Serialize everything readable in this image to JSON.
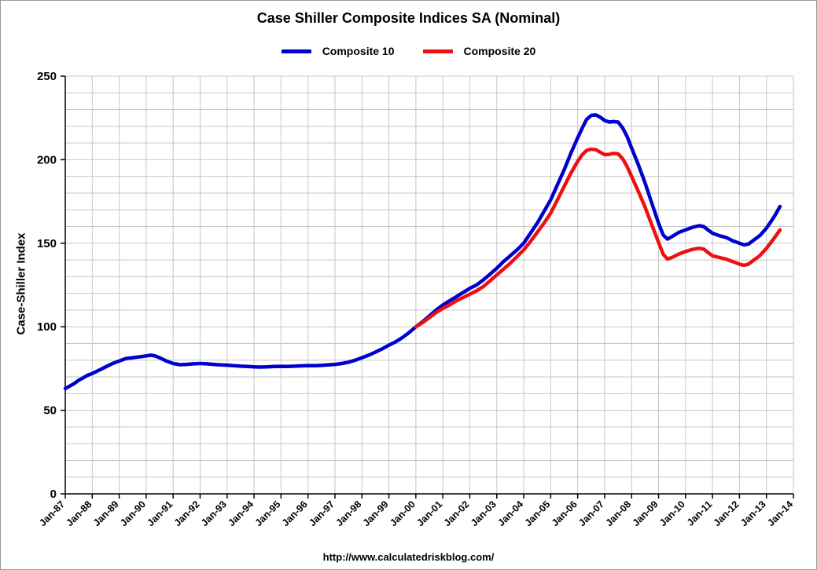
{
  "chart_data": {
    "type": "line",
    "title": "Case Shiller Composite Indices SA (Nominal)",
    "ylabel": "Case-Shiller Index",
    "xlabel": "",
    "source_url": "http://www.calculatedriskblog.com/",
    "x_range": [
      1987,
      2014
    ],
    "ylim": [
      0,
      250
    ],
    "y_ticks": [
      0,
      50,
      100,
      150,
      200,
      250
    ],
    "y_minor_grid_step": 10,
    "grid": true,
    "legend_position": "top-center",
    "grid_color": "#c6c6c6",
    "axis_color": "#000000",
    "x_tick_labels": [
      "Jan-87",
      "Jan-88",
      "Jan-89",
      "Jan-90",
      "Jan-91",
      "Jan-92",
      "Jan-93",
      "Jan-94",
      "Jan-95",
      "Jan-96",
      "Jan-97",
      "Jan-98",
      "Jan-99",
      "Jan-00",
      "Jan-01",
      "Jan-02",
      "Jan-03",
      "Jan-04",
      "Jan-05",
      "Jan-06",
      "Jan-07",
      "Jan-08",
      "Jan-09",
      "Jan-10",
      "Jan-11",
      "Jan-12",
      "Jan-13",
      "Jan-14"
    ],
    "series": [
      {
        "name": "Composite 10",
        "color": "#0000CC",
        "points": [
          [
            1987.0,
            63
          ],
          [
            1987.17,
            64.5
          ],
          [
            1987.33,
            66
          ],
          [
            1987.5,
            68
          ],
          [
            1987.67,
            69.5
          ],
          [
            1987.83,
            71
          ],
          [
            1988.0,
            72
          ],
          [
            1988.25,
            74
          ],
          [
            1988.5,
            76
          ],
          [
            1988.75,
            78
          ],
          [
            1989.0,
            79.5
          ],
          [
            1989.25,
            81
          ],
          [
            1989.5,
            81.5
          ],
          [
            1989.75,
            82
          ],
          [
            1990.0,
            82.5
          ],
          [
            1990.17,
            83
          ],
          [
            1990.33,
            82.5
          ],
          [
            1990.5,
            81.5
          ],
          [
            1990.75,
            79.5
          ],
          [
            1991.0,
            78
          ],
          [
            1991.25,
            77.3
          ],
          [
            1991.5,
            77.5
          ],
          [
            1991.75,
            77.8
          ],
          [
            1992.0,
            78
          ],
          [
            1992.25,
            77.8
          ],
          [
            1992.5,
            77.5
          ],
          [
            1992.75,
            77.2
          ],
          [
            1993.0,
            77
          ],
          [
            1993.25,
            76.7
          ],
          [
            1993.5,
            76.4
          ],
          [
            1993.75,
            76.2
          ],
          [
            1994.0,
            76
          ],
          [
            1994.25,
            75.9
          ],
          [
            1994.5,
            76
          ],
          [
            1994.75,
            76.2
          ],
          [
            1995.0,
            76.3
          ],
          [
            1995.25,
            76.2
          ],
          [
            1995.5,
            76.4
          ],
          [
            1995.75,
            76.6
          ],
          [
            1996.0,
            76.8
          ],
          [
            1996.25,
            76.7
          ],
          [
            1996.5,
            76.9
          ],
          [
            1996.75,
            77.2
          ],
          [
            1997.0,
            77.5
          ],
          [
            1997.25,
            78
          ],
          [
            1997.5,
            78.8
          ],
          [
            1997.75,
            80
          ],
          [
            1998.0,
            81.5
          ],
          [
            1998.25,
            83
          ],
          [
            1998.5,
            84.8
          ],
          [
            1998.75,
            86.8
          ],
          [
            1999.0,
            89
          ],
          [
            1999.25,
            91
          ],
          [
            1999.5,
            93.5
          ],
          [
            1999.75,
            96.5
          ],
          [
            2000.0,
            100
          ],
          [
            2000.25,
            103
          ],
          [
            2000.5,
            106.5
          ],
          [
            2000.75,
            110
          ],
          [
            2001.0,
            113
          ],
          [
            2001.25,
            115.5
          ],
          [
            2001.5,
            118
          ],
          [
            2001.75,
            120.5
          ],
          [
            2002.0,
            123
          ],
          [
            2002.25,
            125
          ],
          [
            2002.5,
            128
          ],
          [
            2002.75,
            131.5
          ],
          [
            2003.0,
            135
          ],
          [
            2003.25,
            139
          ],
          [
            2003.5,
            142.5
          ],
          [
            2003.75,
            146
          ],
          [
            2004.0,
            150
          ],
          [
            2004.25,
            156
          ],
          [
            2004.5,
            162
          ],
          [
            2004.75,
            169
          ],
          [
            2005.0,
            176
          ],
          [
            2005.25,
            185
          ],
          [
            2005.5,
            194
          ],
          [
            2005.75,
            204
          ],
          [
            2006.0,
            213
          ],
          [
            2006.17,
            219
          ],
          [
            2006.33,
            224
          ],
          [
            2006.5,
            226.5
          ],
          [
            2006.67,
            226.8
          ],
          [
            2006.83,
            225.5
          ],
          [
            2007.0,
            223.5
          ],
          [
            2007.17,
            222.5
          ],
          [
            2007.33,
            222.8
          ],
          [
            2007.5,
            222.5
          ],
          [
            2007.67,
            219
          ],
          [
            2007.83,
            214
          ],
          [
            2008.0,
            207
          ],
          [
            2008.25,
            197
          ],
          [
            2008.5,
            186
          ],
          [
            2008.75,
            174
          ],
          [
            2009.0,
            162
          ],
          [
            2009.17,
            155
          ],
          [
            2009.33,
            152.5
          ],
          [
            2009.5,
            154
          ],
          [
            2009.75,
            156.5
          ],
          [
            2010.0,
            158
          ],
          [
            2010.25,
            159.5
          ],
          [
            2010.5,
            160.5
          ],
          [
            2010.67,
            160
          ],
          [
            2010.83,
            158
          ],
          [
            2011.0,
            156
          ],
          [
            2011.25,
            154.5
          ],
          [
            2011.5,
            153.5
          ],
          [
            2011.75,
            151.5
          ],
          [
            2012.0,
            150
          ],
          [
            2012.17,
            149
          ],
          [
            2012.33,
            149.5
          ],
          [
            2012.5,
            151.5
          ],
          [
            2012.75,
            154.5
          ],
          [
            2013.0,
            159
          ],
          [
            2013.17,
            163
          ],
          [
            2013.33,
            167
          ],
          [
            2013.5,
            172
          ]
        ]
      },
      {
        "name": "Composite 20",
        "color": "#EE1010",
        "points": [
          [
            2000.0,
            100
          ],
          [
            2000.25,
            102.5
          ],
          [
            2000.5,
            105.5
          ],
          [
            2000.75,
            108.5
          ],
          [
            2001.0,
            111
          ],
          [
            2001.25,
            113
          ],
          [
            2001.5,
            115.5
          ],
          [
            2001.75,
            117.5
          ],
          [
            2002.0,
            119.5
          ],
          [
            2002.25,
            121.5
          ],
          [
            2002.5,
            124
          ],
          [
            2002.75,
            127.5
          ],
          [
            2003.0,
            131
          ],
          [
            2003.25,
            134.5
          ],
          [
            2003.5,
            138
          ],
          [
            2003.75,
            142
          ],
          [
            2004.0,
            146
          ],
          [
            2004.25,
            151
          ],
          [
            2004.5,
            156.5
          ],
          [
            2004.75,
            162
          ],
          [
            2005.0,
            168
          ],
          [
            2005.25,
            176
          ],
          [
            2005.5,
            184
          ],
          [
            2005.75,
            192
          ],
          [
            2006.0,
            199
          ],
          [
            2006.17,
            203
          ],
          [
            2006.33,
            205.5
          ],
          [
            2006.5,
            206.3
          ],
          [
            2006.67,
            206
          ],
          [
            2006.83,
            204.5
          ],
          [
            2007.0,
            203
          ],
          [
            2007.17,
            203.2
          ],
          [
            2007.33,
            203.8
          ],
          [
            2007.5,
            203.5
          ],
          [
            2007.67,
            200.5
          ],
          [
            2007.83,
            196
          ],
          [
            2008.0,
            190
          ],
          [
            2008.25,
            181
          ],
          [
            2008.5,
            171.5
          ],
          [
            2008.75,
            161
          ],
          [
            2009.0,
            150.5
          ],
          [
            2009.17,
            143.5
          ],
          [
            2009.33,
            140.5
          ],
          [
            2009.5,
            141.5
          ],
          [
            2009.75,
            143.5
          ],
          [
            2010.0,
            145
          ],
          [
            2010.25,
            146.3
          ],
          [
            2010.5,
            147
          ],
          [
            2010.67,
            146.5
          ],
          [
            2010.83,
            144.5
          ],
          [
            2011.0,
            142.5
          ],
          [
            2011.25,
            141.5
          ],
          [
            2011.5,
            140.5
          ],
          [
            2011.75,
            139
          ],
          [
            2012.0,
            137.5
          ],
          [
            2012.17,
            136.8
          ],
          [
            2012.33,
            137.5
          ],
          [
            2012.5,
            139.5
          ],
          [
            2012.75,
            142.5
          ],
          [
            2013.0,
            147
          ],
          [
            2013.17,
            150.5
          ],
          [
            2013.33,
            154
          ],
          [
            2013.5,
            158
          ]
        ]
      }
    ]
  }
}
